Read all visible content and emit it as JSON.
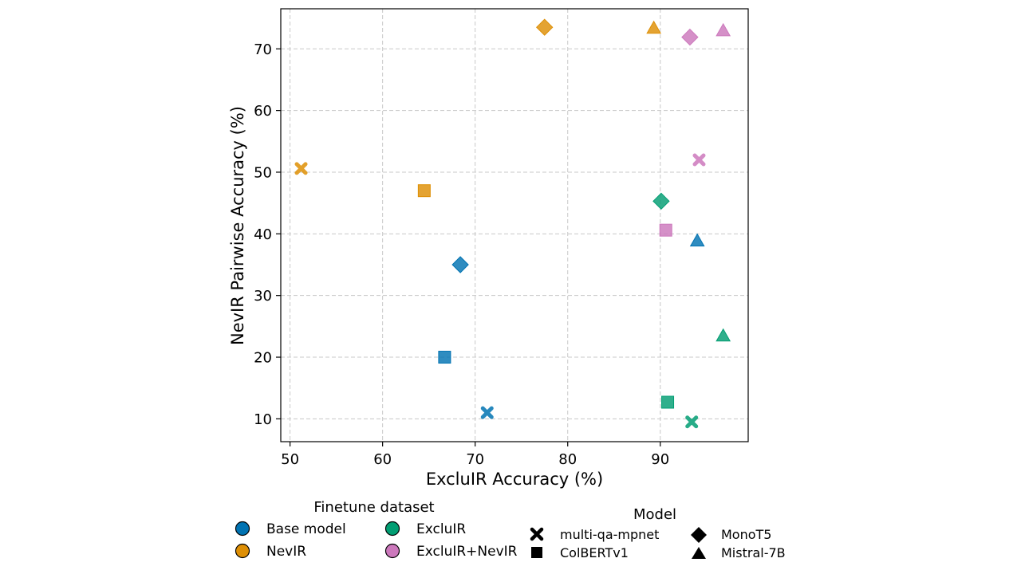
{
  "chart_data": {
    "type": "scatter",
    "title": "",
    "xlabel": "ExcluIR Accuracy (%)",
    "ylabel": "NevIR Pairwise Accuracy (%)",
    "xlim": [
      49,
      99.5
    ],
    "ylim": [
      6.3,
      76.5
    ],
    "xticks": [
      "50",
      "60",
      "70",
      "80",
      "90"
    ],
    "yticks": [
      "10",
      "20",
      "30",
      "40",
      "50",
      "60",
      "70"
    ],
    "grid": true,
    "finetune_legend": {
      "title": "Finetune dataset",
      "entries": [
        {
          "key": "base",
          "label": "Base model",
          "color": "#0173b2"
        },
        {
          "key": "excluir",
          "label": "ExcluIR",
          "color": "#029e73"
        },
        {
          "key": "nevir",
          "label": "NevIR",
          "color": "#de8f05"
        },
        {
          "key": "both",
          "label": "ExcluIR+NevIR",
          "color": "#cc78bc"
        }
      ]
    },
    "model_legend": {
      "title": "Model",
      "entries": [
        {
          "key": "mpnet",
          "label": "multi-qa-mpnet",
          "marker": "x"
        },
        {
          "key": "colbert",
          "label": "ColBERTv1",
          "marker": "square"
        },
        {
          "key": "monot5",
          "label": "MonoT5",
          "marker": "diamond"
        },
        {
          "key": "mistral",
          "label": "Mistral-7B",
          "marker": "triangle"
        }
      ]
    },
    "points": [
      {
        "dataset": "base",
        "model": "colbert",
        "x": 66.7,
        "y": 20.0
      },
      {
        "dataset": "base",
        "model": "mpnet",
        "x": 71.3,
        "y": 11.0
      },
      {
        "dataset": "base",
        "model": "monot5",
        "x": 68.4,
        "y": 35.0
      },
      {
        "dataset": "base",
        "model": "mistral",
        "x": 94.0,
        "y": 38.8
      },
      {
        "dataset": "nevir",
        "model": "mpnet",
        "x": 51.2,
        "y": 50.6
      },
      {
        "dataset": "nevir",
        "model": "colbert",
        "x": 64.5,
        "y": 47.0
      },
      {
        "dataset": "nevir",
        "model": "monot5",
        "x": 77.5,
        "y": 73.5
      },
      {
        "dataset": "nevir",
        "model": "mistral",
        "x": 89.3,
        "y": 73.3
      },
      {
        "dataset": "excluir",
        "model": "monot5",
        "x": 90.1,
        "y": 45.3
      },
      {
        "dataset": "excluir",
        "model": "colbert",
        "x": 90.8,
        "y": 12.7
      },
      {
        "dataset": "excluir",
        "model": "mpnet",
        "x": 93.4,
        "y": 9.5
      },
      {
        "dataset": "excluir",
        "model": "mistral",
        "x": 96.8,
        "y": 23.4
      },
      {
        "dataset": "both",
        "model": "monot5",
        "x": 93.2,
        "y": 71.9
      },
      {
        "dataset": "both",
        "model": "mistral",
        "x": 96.8,
        "y": 72.9
      },
      {
        "dataset": "both",
        "model": "mpnet",
        "x": 94.2,
        "y": 52.0
      },
      {
        "dataset": "both",
        "model": "colbert",
        "x": 90.6,
        "y": 40.6
      }
    ]
  }
}
